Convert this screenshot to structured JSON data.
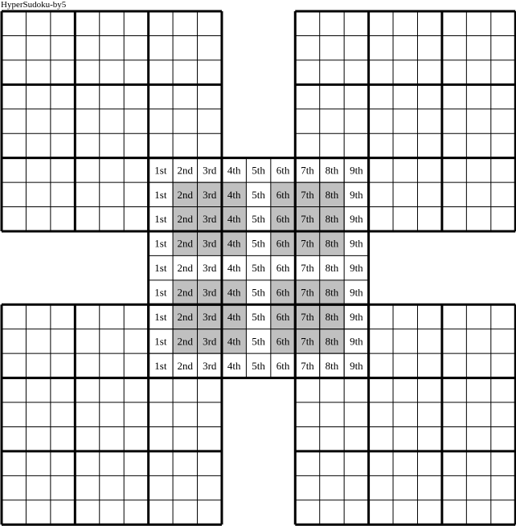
{
  "title": "HyperSudoku-by5",
  "puzzle": {
    "grid_count": 5,
    "center_grid": {
      "column_labels": [
        "1st",
        "2nd",
        "3rd",
        "4th",
        "5th",
        "6th",
        "7th",
        "8th",
        "9th"
      ],
      "shaded_rows": [
        2,
        3,
        4,
        6,
        7,
        8
      ],
      "shaded_columns": [
        2,
        3,
        4,
        6,
        7,
        8
      ]
    }
  },
  "colors": {
    "shade": "#c0c0c0",
    "line": "#000000",
    "background": "#ffffff"
  }
}
